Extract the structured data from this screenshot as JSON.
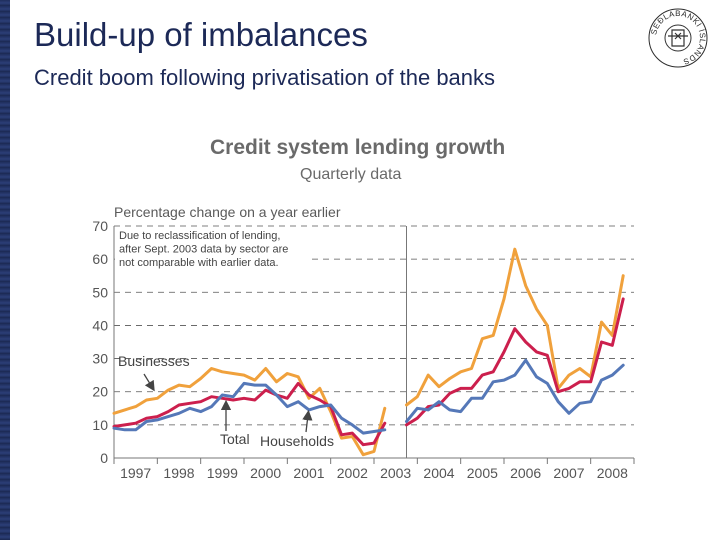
{
  "slide": {
    "title": "Build-up of imbalances",
    "subtitle": "Credit boom following privatisation of the banks",
    "seal_text": "SEÐLABANKI ÍSLANDS"
  },
  "chart_data": {
    "type": "line",
    "title": "Credit system lending growth",
    "subtitle": "Quarterly data",
    "ylabel": "Percentage change on a year earlier",
    "ylim": [
      0,
      70
    ],
    "yticks": [
      0,
      10,
      20,
      30,
      40,
      50,
      60,
      70
    ],
    "xlim": [
      1997,
      2009
    ],
    "categories": [
      "1997",
      "1998",
      "1999",
      "2000",
      "2001",
      "2002",
      "2003",
      "2004",
      "2005",
      "2006",
      "2007",
      "2008"
    ],
    "grid": "horizontal dashed",
    "break_at": 2003.75,
    "note": "Due to reclassification of lending, after Sept. 2003 data by sector are not comparable with earlier data.",
    "annotations": [
      {
        "label": "Businesses",
        "series": "Businesses"
      },
      {
        "label": "Total",
        "series": "Total"
      },
      {
        "label": "Households",
        "series": "Households"
      }
    ],
    "series": [
      {
        "name": "Businesses",
        "color": "#f0a13c",
        "segments": [
          {
            "x": [
              1997.0,
              1997.25,
              1997.5,
              1997.75,
              1998.0,
              1998.25,
              1998.5,
              1998.75,
              1999.0,
              1999.25,
              1999.5,
              1999.75,
              2000.0,
              2000.25,
              2000.5,
              2000.75,
              2001.0,
              2001.25,
              2001.5,
              2001.75,
              2002.0,
              2002.25,
              2002.5,
              2002.75,
              2003.0,
              2003.25,
              2003.5
            ],
            "y": [
              13.5,
              14.5,
              15.5,
              17.5,
              18,
              20.5,
              22,
              21.5,
              24,
              27,
              26,
              25.5,
              25,
              23.5,
              27,
              23,
              25.5,
              24.5,
              18,
              21,
              14,
              6,
              6.5,
              1,
              2,
              15,
              null
            ]
          },
          {
            "x": [
              2003.75,
              2004.0,
              2004.25,
              2004.5,
              2004.75,
              2005.0,
              2005.25,
              2005.5,
              2005.75,
              2006.0,
              2006.25,
              2006.5,
              2006.75,
              2007.0,
              2007.25,
              2007.5,
              2007.75,
              2008.0,
              2008.25,
              2008.5,
              2008.75
            ],
            "y": [
              16,
              18.5,
              25,
              21.5,
              24,
              26,
              27,
              36,
              37,
              48,
              63,
              52,
              45,
              40,
              21,
              25,
              27,
              24.5,
              41,
              37,
              55
            ]
          }
        ]
      },
      {
        "name": "Total",
        "color": "#cc1f4d",
        "segments": [
          {
            "x": [
              1997.0,
              1997.25,
              1997.5,
              1997.75,
              1998.0,
              1998.25,
              1998.5,
              1998.75,
              1999.0,
              1999.25,
              1999.5,
              1999.75,
              2000.0,
              2000.25,
              2000.5,
              2000.75,
              2001.0,
              2001.25,
              2001.5,
              2001.75,
              2002.0,
              2002.25,
              2002.5,
              2002.75,
              2003.0,
              2003.25
            ],
            "y": [
              9.5,
              10,
              10.5,
              12,
              12.5,
              14,
              16,
              16.5,
              17,
              18.5,
              18,
              17.5,
              18,
              17.5,
              20.5,
              19,
              18,
              22.5,
              19,
              17.5,
              15.5,
              7,
              7.5,
              4,
              4.5,
              10.5
            ]
          },
          {
            "x": [
              2003.75,
              2004.0,
              2004.25,
              2004.5,
              2004.75,
              2005.0,
              2005.25,
              2005.5,
              2005.75,
              2006.0,
              2006.25,
              2006.5,
              2006.75,
              2007.0,
              2007.25,
              2007.5,
              2007.75,
              2008.0,
              2008.25,
              2008.5,
              2008.75
            ],
            "y": [
              10,
              12,
              15.5,
              16,
              19.5,
              21,
              21,
              25,
              26,
              32,
              39,
              35,
              32,
              31,
              20,
              21,
              23,
              23,
              35,
              34,
              48
            ]
          }
        ]
      },
      {
        "name": "Households",
        "color": "#5578b8",
        "segments": [
          {
            "x": [
              1997.0,
              1997.25,
              1997.5,
              1997.75,
              1998.0,
              1998.25,
              1998.5,
              1998.75,
              1999.0,
              1999.25,
              1999.5,
              1999.75,
              2000.0,
              2000.25,
              2000.5,
              2000.75,
              2001.0,
              2001.25,
              2001.5,
              2001.75,
              2002.0,
              2002.25,
              2002.5,
              2002.75,
              2003.0,
              2003.25
            ],
            "y": [
              9,
              8.5,
              8.5,
              11,
              11.5,
              12.5,
              13.5,
              15,
              14,
              15.5,
              19,
              18.5,
              22.5,
              22,
              22,
              19,
              15.5,
              17,
              14.5,
              15.5,
              16,
              12,
              10,
              7.5,
              8,
              8.5
            ]
          },
          {
            "x": [
              2003.75,
              2004.0,
              2004.25,
              2004.5,
              2004.75,
              2005.0,
              2005.25,
              2005.5,
              2005.75,
              2006.0,
              2006.25,
              2006.5,
              2006.75,
              2007.0,
              2007.25,
              2007.5,
              2007.75,
              2008.0,
              2008.25,
              2008.5,
              2008.75
            ],
            "y": [
              11,
              15,
              14.5,
              17,
              14.5,
              14,
              18,
              18,
              23,
              23.5,
              25,
              29.5,
              24.5,
              22.5,
              17,
              13.5,
              16.5,
              17,
              23.5,
              25,
              28
            ]
          }
        ]
      }
    ]
  }
}
